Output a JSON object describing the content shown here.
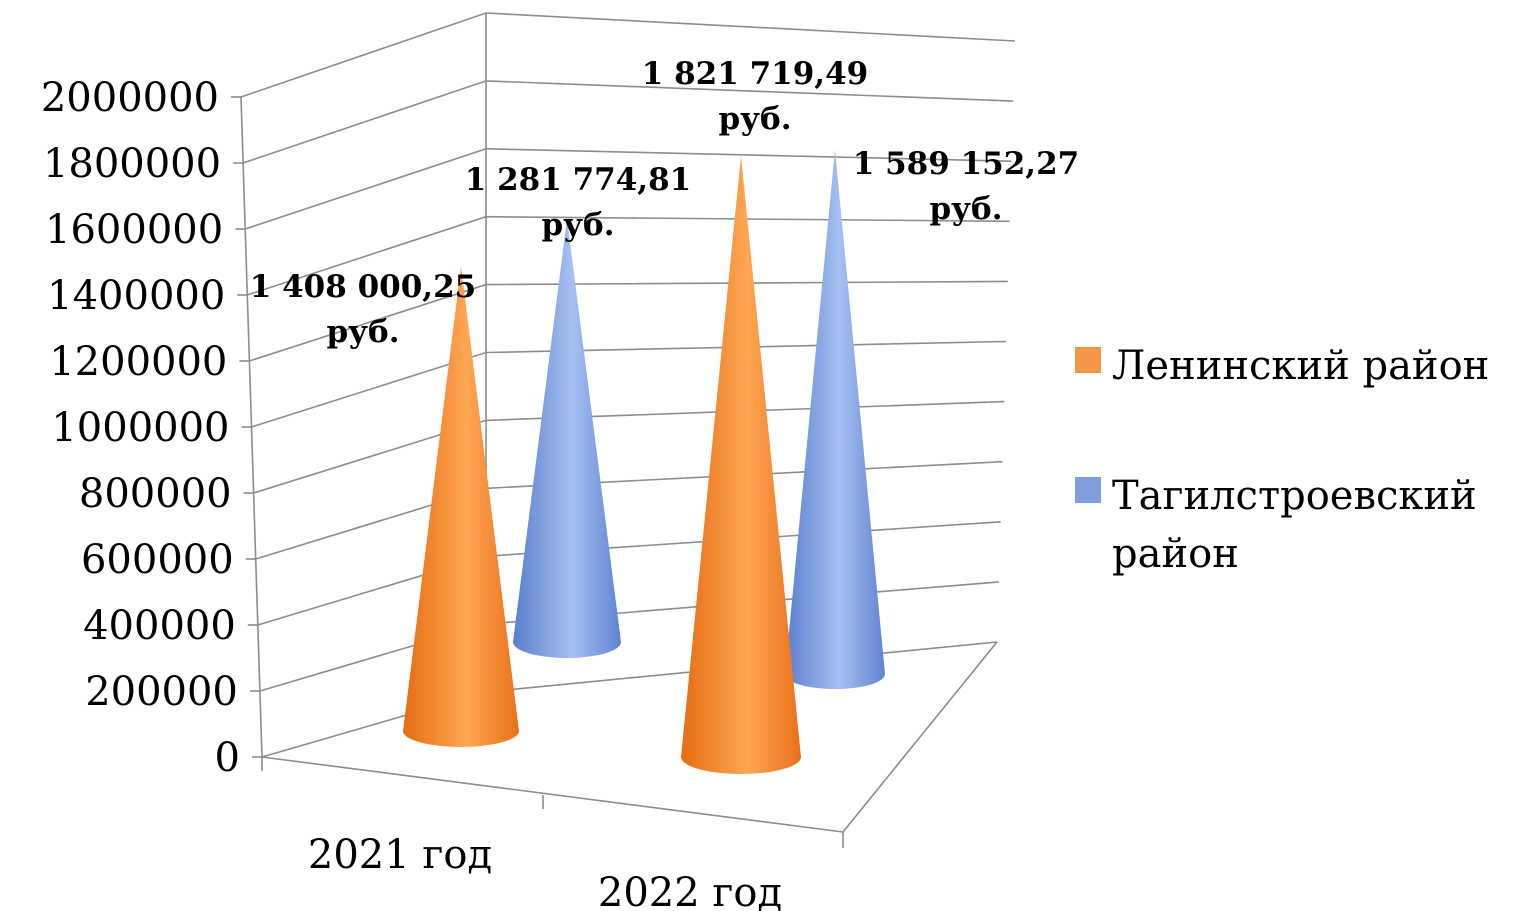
{
  "chart_data": {
    "type": "bar",
    "style": "3d-cone",
    "title": "",
    "xlabel": "",
    "ylabel": "",
    "categories": [
      "2021 год",
      "2022 год"
    ],
    "yticks": [
      "0",
      "200000",
      "400000",
      "600000",
      "800000",
      "1000000",
      "1200000",
      "1400000",
      "1600000",
      "1800000",
      "2000000"
    ],
    "ylim": [
      0,
      2000000
    ],
    "grid": true,
    "legend_position": "right",
    "series": [
      {
        "name": "Ленинский район",
        "color": "#f79646",
        "values": [
          1408000.25,
          1821719.49
        ],
        "labels": [
          [
            "1 408 000,25",
            "руб."
          ],
          [
            "1 821 719,49",
            "руб."
          ]
        ]
      },
      {
        "name": "Тагилстроевский район",
        "legend_lines": [
          "Тагилстроевский",
          "район"
        ],
        "color": "#7f9fdc",
        "values": [
          1281774.81,
          1589152.27
        ],
        "labels": [
          [
            "1 281 774,81",
            "руб."
          ],
          [
            "1 589 152,27",
            "руб."
          ]
        ]
      }
    ]
  }
}
